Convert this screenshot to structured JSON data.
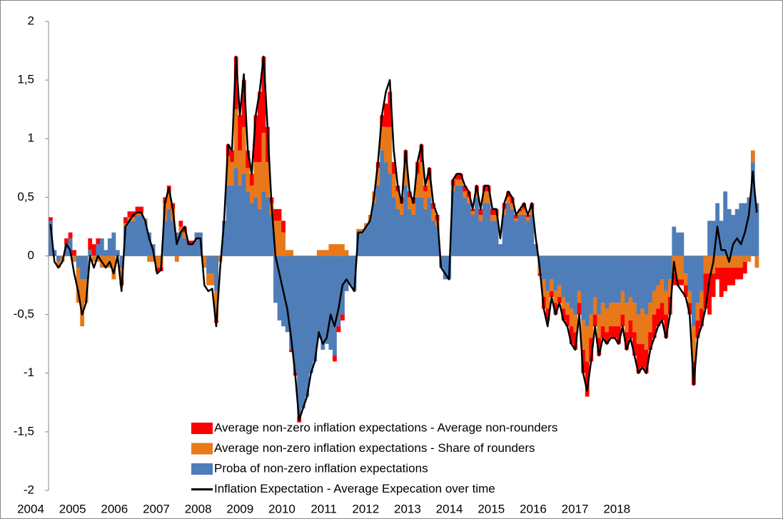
{
  "chart_data": {
    "type": "bar",
    "stacked": true,
    "categories": [
      "2004",
      null,
      null,
      null,
      null,
      null,
      null,
      null,
      null,
      null,
      null,
      null,
      "2005",
      null,
      null,
      null,
      null,
      null,
      null,
      null,
      null,
      null,
      null,
      null,
      "2006",
      null,
      null,
      null,
      null,
      null,
      null,
      null,
      null,
      null,
      null,
      null,
      "2007",
      null,
      null,
      null,
      null,
      null,
      null,
      null,
      null,
      null,
      null,
      null,
      "2008",
      null,
      null,
      null,
      null,
      null,
      null,
      null,
      null,
      null,
      null,
      null,
      "2009",
      null,
      null,
      null,
      null,
      null,
      null,
      null,
      null,
      null,
      null,
      null,
      "2010",
      null,
      null,
      null,
      null,
      null,
      null,
      null,
      null,
      null,
      null,
      null,
      "2011",
      null,
      null,
      null,
      null,
      null,
      null,
      null,
      null,
      null,
      null,
      null,
      "2012",
      null,
      null,
      null,
      null,
      null,
      null,
      null,
      null,
      null,
      null,
      null,
      "2013",
      null,
      null,
      null,
      null,
      null,
      null,
      null,
      null,
      null,
      null,
      null,
      "2014",
      null,
      null,
      null,
      null,
      null,
      null,
      null,
      null,
      null,
      null,
      null,
      "2015",
      null,
      null,
      null,
      null,
      null,
      null,
      null,
      null,
      null,
      null,
      null,
      "2016",
      null,
      null,
      null,
      null,
      null,
      null,
      null,
      null,
      null,
      null,
      null,
      "2017",
      null,
      null,
      null,
      null,
      null,
      null,
      null,
      null,
      null,
      null,
      null,
      "2018",
      null,
      null,
      null,
      null,
      null,
      null,
      null,
      null,
      null,
      null,
      null
    ],
    "series": [
      {
        "name": "Average non-zero inflation expectations - Average non-rounders",
        "color": "#ff0000",
        "values": [
          0.03,
          0,
          0,
          0,
          0.05,
          0.05,
          0.05,
          0,
          0,
          0,
          0.1,
          0.1,
          0.05,
          0,
          0,
          0,
          0,
          0,
          -0.05,
          0.05,
          0.05,
          0.05,
          0.05,
          0.05,
          0,
          0,
          0,
          -0.03,
          -0.03,
          0.05,
          0.05,
          0.05,
          0,
          0.05,
          0.05,
          0.03,
          0.03,
          0,
          0,
          0,
          0,
          0,
          -0.02,
          0,
          0,
          0.1,
          0.1,
          0.45,
          0.3,
          0.4,
          0.15,
          0.1,
          0.4,
          0.6,
          0.65,
          0.3,
          0.05,
          0.1,
          0.1,
          0.1,
          0,
          -0.02,
          -0.02,
          -0.05,
          0,
          0,
          0,
          0,
          0,
          0,
          0,
          0,
          -0.05,
          -0.05,
          -0.05,
          0,
          0,
          0,
          0,
          0,
          0,
          0,
          0,
          0.05,
          0.1,
          0.2,
          0.3,
          0.1,
          0.05,
          0.05,
          0.1,
          0.05,
          0.05,
          0.1,
          0.15,
          0.05,
          0.1,
          0.05,
          0.05,
          0,
          0,
          0,
          0.05,
          0.05,
          0.05,
          0.05,
          0.05,
          0.02,
          0.05,
          0.05,
          0.05,
          0.05,
          0.05,
          0.05,
          0,
          0.05,
          0.05,
          0.05,
          0.03,
          0.02,
          0.05,
          0.02,
          0.05,
          0,
          -0.02,
          -0.1,
          -0.1,
          -0.05,
          -0.1,
          -0.05,
          -0.1,
          -0.1,
          -0.15,
          -0.15,
          -0.1,
          -0.2,
          -0.3,
          -0.2,
          -0.1,
          -0.15,
          -0.1,
          -0.1,
          -0.1,
          -0.1,
          -0.15,
          -0.1,
          -0.15,
          -0.15,
          -0.2,
          -0.25,
          -0.2,
          -0.2,
          -0.15,
          -0.2,
          -0.15,
          -0.15,
          -0.2,
          -0.15,
          -0.1,
          -0.05,
          -0.05,
          -0.1,
          -0.1,
          -0.2,
          -0.15,
          -0.15,
          -0.3,
          -0.35,
          -0.2,
          -0.1,
          -0.25,
          -0.2,
          -0.15,
          -0.15,
          -0.1,
          -0.1,
          -0.1,
          0,
          0,
          0
        ]
      },
      {
        "name": "Average non-zero inflation expectations - Share of rounders",
        "color": "#e8781a",
        "values": [
          0,
          0,
          -0.05,
          -0.05,
          0,
          0,
          -0.05,
          -0.3,
          -0.4,
          -0.2,
          0,
          -0.05,
          -0.05,
          -0.1,
          -0.1,
          -0.1,
          -0.2,
          0,
          -0.1,
          0.03,
          0.03,
          0.03,
          0.02,
          0.02,
          0.02,
          -0.05,
          -0.05,
          -0.1,
          -0.1,
          0.15,
          0.15,
          0.1,
          -0.05,
          0.05,
          0.05,
          0,
          0,
          0,
          0,
          -0.1,
          -0.1,
          -0.1,
          -0.25,
          -0.05,
          0,
          0.25,
          0.2,
          0.5,
          0.3,
          0.4,
          0.2,
          0.15,
          0.3,
          0.4,
          0.5,
          0.3,
          0.1,
          0.3,
          0.3,
          0.2,
          0.05,
          0.05,
          0,
          -0.02,
          0,
          0,
          0,
          0,
          0.05,
          0.05,
          0.05,
          0.1,
          0.1,
          0.1,
          0.1,
          0.05,
          0,
          0,
          0.03,
          0.03,
          0.03,
          0.05,
          0.1,
          0.15,
          0.2,
          0.3,
          0.4,
          0.2,
          0.15,
          0.1,
          0.2,
          0.1,
          0.1,
          0.2,
          0.3,
          0.15,
          0.15,
          0.1,
          0.05,
          0,
          0,
          0,
          0.05,
          0.05,
          0.05,
          0.05,
          0.05,
          0.03,
          0.05,
          0.05,
          0.1,
          0.1,
          0.05,
          0.05,
          0,
          0.05,
          0.05,
          0.05,
          0.02,
          0.03,
          0.05,
          0.03,
          0.05,
          0,
          -0.05,
          -0.15,
          -0.15,
          -0.1,
          -0.1,
          -0.1,
          -0.1,
          -0.1,
          -0.15,
          -0.15,
          -0.1,
          -0.25,
          -0.3,
          -0.2,
          -0.15,
          -0.2,
          -0.2,
          -0.2,
          -0.2,
          -0.2,
          -0.2,
          -0.2,
          -0.25,
          -0.2,
          -0.25,
          -0.25,
          -0.3,
          -0.3,
          -0.25,
          -0.2,
          -0.2,
          -0.2,
          -0.2,
          -0.15,
          -0.15,
          -0.2,
          -0.2,
          -0.1,
          -0.1,
          -0.3,
          -0.15,
          -0.15,
          -0.15,
          -0.15,
          -0.15,
          -0.1,
          -0.1,
          -0.1,
          -0.1,
          -0.1,
          -0.1,
          -0.1,
          -0.05,
          -0.05,
          0.1,
          -0.1
        ]
      },
      {
        "name": "Proba of non-zero inflation expectations",
        "color": "#4f7db8",
        "values": [
          0.3,
          0.05,
          -0.05,
          0,
          0.1,
          0.15,
          0,
          -0.1,
          -0.2,
          -0.2,
          0.05,
          0,
          0.1,
          0.15,
          0.05,
          0.15,
          0.2,
          0.05,
          -0.1,
          0.25,
          0.3,
          0.3,
          0.35,
          0.35,
          0.3,
          0.2,
          0.1,
          0,
          0,
          0.3,
          0.4,
          0.3,
          0.2,
          0.2,
          0.15,
          0.1,
          0.1,
          0.2,
          0.2,
          0,
          -0.15,
          -0.15,
          -0.3,
          0,
          0.3,
          0.6,
          0.6,
          0.75,
          0.6,
          0.7,
          0.55,
          0.45,
          0.5,
          0.4,
          0.55,
          0.5,
          0.35,
          -0.4,
          -0.55,
          -0.6,
          -0.65,
          -0.8,
          -1.0,
          -1.35,
          -1.3,
          -1.2,
          -1.0,
          -0.9,
          -0.7,
          -0.8,
          -0.75,
          -0.8,
          -0.85,
          -0.6,
          -0.5,
          -0.3,
          -0.25,
          -0.3,
          0.2,
          0.2,
          0.25,
          0.3,
          0.45,
          0.6,
          0.9,
          0.8,
          0.7,
          0.5,
          0.4,
          0.35,
          0.6,
          0.4,
          0.35,
          0.5,
          0.5,
          0.4,
          0.5,
          0.3,
          0.25,
          -0.1,
          -0.2,
          -0.2,
          0.55,
          0.6,
          0.6,
          0.5,
          0.45,
          0.35,
          0.5,
          0.3,
          0.45,
          0.45,
          0.3,
          0.3,
          0.1,
          0.35,
          0.45,
          0.4,
          0.3,
          0.35,
          0.35,
          0.3,
          0.35,
          0.1,
          -0.1,
          -0.2,
          -0.3,
          -0.2,
          -0.3,
          -0.25,
          -0.35,
          -0.4,
          -0.45,
          -0.5,
          -0.3,
          -0.55,
          -0.6,
          -0.5,
          -0.35,
          -0.5,
          -0.4,
          -0.45,
          -0.4,
          -0.4,
          -0.4,
          -0.3,
          -0.4,
          -0.35,
          -0.4,
          -0.5,
          -0.45,
          -0.5,
          -0.4,
          -0.3,
          -0.25,
          -0.2,
          -0.3,
          -0.2,
          0.25,
          0.2,
          0.2,
          -0.15,
          -0.3,
          -0.6,
          -0.4,
          -0.3,
          0,
          0.3,
          0.3,
          0.45,
          0.3,
          0.55,
          0.4,
          0.35,
          0.4,
          0.45,
          0.45,
          0.5,
          0.8,
          0.45
        ]
      },
      {
        "name": "Inflation Expectation - Average Expecation over time",
        "color": "#000000",
        "type": "line",
        "values": [
          0.27,
          -0.05,
          -0.1,
          -0.05,
          0.1,
          0.05,
          -0.15,
          -0.3,
          -0.5,
          -0.4,
          0,
          -0.1,
          0,
          -0.05,
          -0.1,
          -0.05,
          -0.15,
          0,
          -0.3,
          0.25,
          0.3,
          0.35,
          0.37,
          0.37,
          0.3,
          0.15,
          0.05,
          -0.15,
          -0.12,
          0.45,
          0.58,
          0.4,
          0.1,
          0.2,
          0.25,
          0.1,
          0.1,
          0.15,
          0.15,
          -0.25,
          -0.3,
          -0.28,
          -0.6,
          -0.1,
          0.3,
          0.95,
          0.9,
          1.7,
          1.2,
          1.55,
          0.9,
          0.7,
          1.2,
          1.4,
          1.7,
          1.1,
          0.45,
          0,
          -0.15,
          -0.3,
          -0.45,
          -0.7,
          -1.0,
          -1.4,
          -1.3,
          -1.2,
          -1.0,
          -0.9,
          -0.65,
          -0.75,
          -0.7,
          -0.5,
          -0.6,
          -0.45,
          -0.25,
          -0.2,
          -0.25,
          -0.3,
          0.2,
          0.2,
          0.25,
          0.3,
          0.5,
          0.8,
          1.2,
          1.4,
          1.5,
          0.9,
          0.6,
          0.45,
          0.9,
          0.55,
          0.45,
          0.8,
          0.95,
          0.6,
          0.75,
          0.45,
          0.35,
          -0.1,
          -0.15,
          -0.2,
          0.65,
          0.7,
          0.7,
          0.6,
          0.55,
          0.4,
          0.6,
          0.4,
          0.6,
          0.6,
          0.4,
          0.4,
          0.15,
          0.45,
          0.55,
          0.5,
          0.35,
          0.4,
          0.45,
          0.35,
          0.45,
          0.15,
          -0.1,
          -0.45,
          -0.6,
          -0.35,
          -0.5,
          -0.4,
          -0.55,
          -0.6,
          -0.75,
          -0.8,
          -0.5,
          -1.0,
          -1.15,
          -0.9,
          -0.6,
          -0.85,
          -0.7,
          -0.75,
          -0.7,
          -0.7,
          -0.75,
          -0.6,
          -0.8,
          -0.7,
          -0.85,
          -1.0,
          -0.95,
          -1.0,
          -0.8,
          -0.7,
          -0.6,
          -0.55,
          -0.7,
          -0.5,
          -0.05,
          -0.25,
          -0.3,
          -0.35,
          -0.5,
          -1.1,
          -0.7,
          -0.6,
          -0.45,
          -0.2,
          -0.05,
          0.25,
          0.05,
          0.05,
          -0.05,
          0.1,
          0.15,
          0.1,
          0.2,
          0.35,
          0.72,
          0.37
        ]
      }
    ],
    "ylim": [
      -2,
      2
    ],
    "yticks": [
      -2,
      {
        "value": -1.5,
        "label": "-1,5"
      },
      -1,
      {
        "value": -0.5,
        "label": "-0,5"
      },
      0,
      {
        "value": 0.5,
        "label": "0,5"
      },
      1,
      {
        "value": 1.5,
        "label": "1,5"
      },
      2
    ],
    "grid": false,
    "legend": "bottom"
  }
}
